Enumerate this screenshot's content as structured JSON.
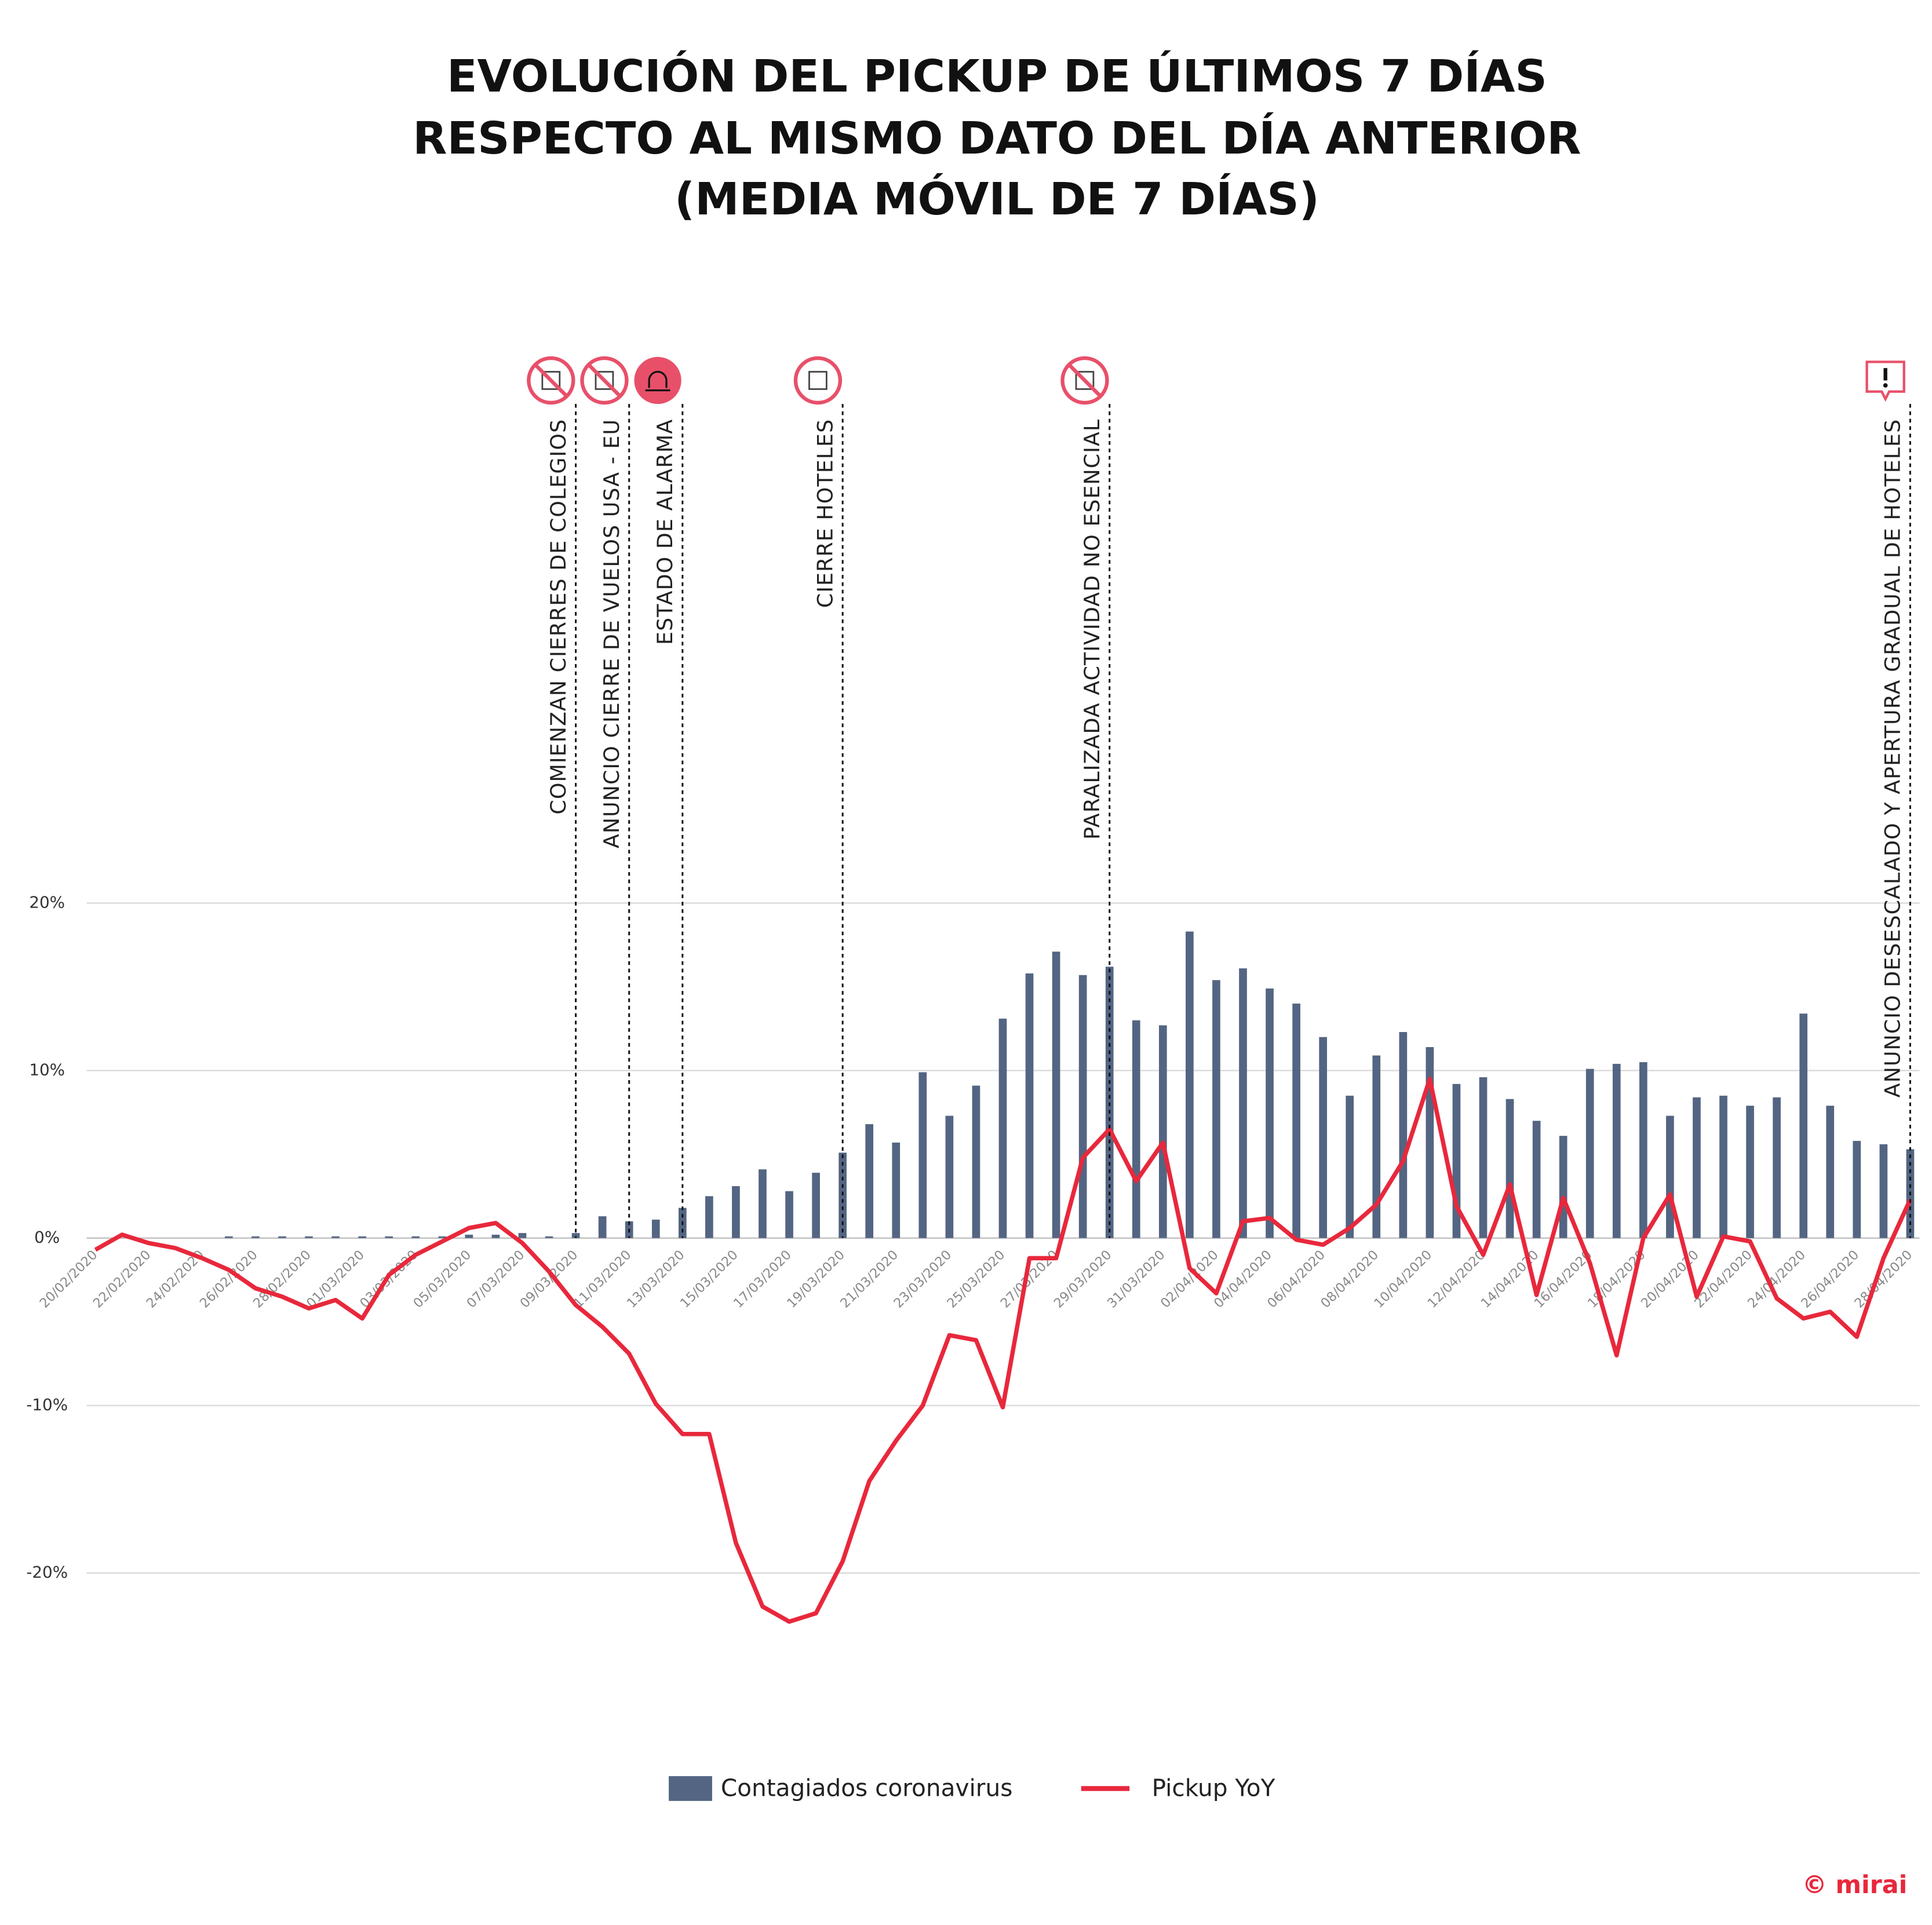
{
  "chart_data": {
    "type": "bar_line",
    "title": [
      "EVOLUCIÓN DEL PICKUP DE ÚLTIMOS 7 DÍAS",
      "RESPECTO AL MISMO DATO DEL DÍA ANTERIOR",
      "(MEDIA MÓVIL DE 7 DÍAS)"
    ],
    "categories": [
      "20/02/2020",
      null,
      "22/02/2020",
      null,
      "24/02/2020",
      null,
      "26/02/2020",
      null,
      "28/02/2020",
      null,
      "01/03/2020",
      null,
      "03/03/2020",
      null,
      "05/03/2020",
      null,
      "07/03/2020",
      null,
      "09/03/2020",
      null,
      "11/03/2020",
      null,
      "13/03/2020",
      null,
      "15/03/2020",
      null,
      "17/03/2020",
      null,
      "19/03/2020",
      null,
      "21/03/2020",
      null,
      "23/03/2020",
      null,
      "25/03/2020",
      null,
      "27/03/2020",
      null,
      "29/03/2020",
      null,
      "31/03/2020",
      null,
      "02/04/2020",
      null,
      "04/04/2020",
      null,
      "06/04/2020",
      null,
      "08/04/2020",
      null,
      "10/04/2020",
      null,
      "12/04/2020",
      null,
      "14/04/2020",
      null,
      "16/04/2020",
      null,
      "18/04/2020",
      null,
      "20/04/2020",
      null,
      "22/04/2020",
      null,
      "24/04/2020",
      null,
      "26/04/2020",
      null,
      "28/04/2020"
    ],
    "series": [
      {
        "name": "Contagiados coronavirus",
        "type": "bar",
        "color": "#536582",
        "values": [
          0,
          0,
          0,
          0,
          0,
          0.1,
          0.1,
          0.1,
          0.1,
          0.1,
          0.1,
          0.1,
          0.1,
          0.1,
          0.2,
          0.2,
          0.3,
          0.1,
          0.3,
          1.3,
          1.0,
          1.1,
          1.8,
          2.5,
          3.1,
          4.1,
          2.8,
          3.9,
          5.1,
          6.8,
          5.7,
          9.9,
          7.3,
          9.1,
          13.1,
          15.8,
          17.1,
          15.7,
          16.2,
          13.0,
          12.7,
          18.3,
          15.4,
          16.1,
          14.9,
          14.0,
          12.0,
          8.5,
          10.9,
          12.3,
          11.4,
          9.2,
          9.6,
          8.3,
          7.0,
          6.1,
          10.1,
          10.4,
          10.5,
          7.3,
          8.4,
          8.5,
          7.9,
          8.4,
          13.4,
          7.9,
          5.8,
          5.6,
          5.3
        ]
      },
      {
        "name": "Pickup YoY",
        "type": "line",
        "color": "#e8283c",
        "values": [
          -0.7,
          0.2,
          -0.3,
          -0.6,
          -1.2,
          -1.9,
          -3.0,
          -3.5,
          -4.2,
          -3.7,
          -4.8,
          -2.2,
          -1.0,
          -0.2,
          0.6,
          0.9,
          -0.3,
          -2.0,
          -4.0,
          -5.3,
          -6.9,
          -9.9,
          -11.7,
          -11.7,
          -18.2,
          -22.0,
          -22.9,
          -22.4,
          -19.3,
          -14.5,
          -12.1,
          -10.0,
          -5.8,
          -6.1,
          -10.1,
          -1.2,
          -1.2,
          4.8,
          6.5,
          3.4,
          5.7,
          -1.8,
          -3.3,
          1.0,
          1.2,
          -0.1,
          -0.4,
          0.6,
          2.0,
          4.6,
          9.5,
          1.9,
          -1.0,
          3.2,
          -3.4,
          2.4,
          -1.5,
          -7.0,
          0.0,
          2.6,
          -3.5,
          0.1,
          -0.2,
          -3.6,
          -4.8,
          -4.4,
          -5.9,
          -1.2,
          2.3
        ]
      }
    ],
    "ylim": [
      -27,
      20
    ],
    "yticks": [
      {
        "value": -20,
        "label": "-20%"
      },
      {
        "value": -10,
        "label": "-10%"
      },
      {
        "value": 0,
        "label": "0%"
      },
      {
        "value": 10,
        "label": "10%"
      },
      {
        "value": 20,
        "label": "20%"
      }
    ],
    "grid": true,
    "annotations": [
      "COMIENZAN CIERRES DE COLEGIOS",
      "ANUNCIO CIERRE DE VUELOS USA - EU",
      "ESTADO DE ALARMA",
      "CIERRE HOTELES",
      "PARALIZADA ACTIVIDAD NO ESENCIAL",
      "ANUNCIO DESESCALADO Y APERTURA GRADUAL DE HOTELES"
    ],
    "legend": "bottom",
    "footer": "© mirai"
  }
}
